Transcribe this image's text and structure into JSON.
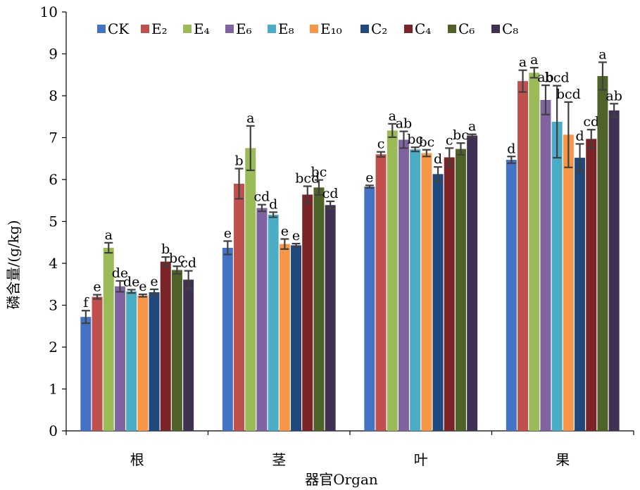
{
  "chart_data": {
    "type": "bar",
    "title": "",
    "xlabel": "器官Organ",
    "ylabel": "磷含量/(g/kg)",
    "ylim": [
      0,
      10
    ],
    "yticks": [
      0,
      1,
      2,
      3,
      4,
      5,
      6,
      7,
      8,
      9,
      10
    ],
    "grid": false,
    "legend_position": "top",
    "categories": [
      "根",
      "茎",
      "叶",
      "果"
    ],
    "series": [
      {
        "name": "CK",
        "color": "#4472C4",
        "values": [
          2.72,
          4.37,
          5.83,
          6.47
        ],
        "errors": [
          0.15,
          0.16,
          0.03,
          0.08
        ],
        "labels": [
          "f",
          "e",
          "e",
          "d"
        ]
      },
      {
        "name": "E₂",
        "color": "#C0504D",
        "values": [
          3.2,
          5.9,
          6.6,
          8.35
        ],
        "errors": [
          0.05,
          0.36,
          0.06,
          0.26
        ],
        "labels": [
          "e",
          "b",
          "c",
          "a"
        ]
      },
      {
        "name": "E₄",
        "color": "#9BBB59",
        "values": [
          4.37,
          6.75,
          7.17,
          8.55
        ],
        "errors": [
          0.12,
          0.53,
          0.16,
          0.12
        ],
        "labels": [
          "a",
          "a",
          "a",
          "a"
        ]
      },
      {
        "name": "E₆",
        "color": "#8064A2",
        "values": [
          3.45,
          5.32,
          6.95,
          7.9
        ],
        "errors": [
          0.13,
          0.08,
          0.2,
          0.35
        ],
        "labels": [
          "de",
          "cd",
          "ab",
          "ab"
        ]
      },
      {
        "name": "E₈",
        "color": "#4BACC6",
        "values": [
          3.33,
          5.16,
          6.72,
          7.38
        ],
        "errors": [
          0.04,
          0.06,
          0.05,
          0.86
        ],
        "labels": [
          "de",
          "d",
          "bc",
          "bcd"
        ]
      },
      {
        "name": "E₁₀",
        "color": "#F79646",
        "values": [
          3.23,
          4.46,
          6.63,
          7.07
        ],
        "errors": [
          0.03,
          0.12,
          0.08,
          0.78
        ],
        "labels": [
          "e",
          "e",
          "bc",
          "bcd"
        ]
      },
      {
        "name": "C₂",
        "color": "#1F497D",
        "values": [
          3.31,
          4.43,
          6.13,
          6.52
        ],
        "errors": [
          0.07,
          0.04,
          0.17,
          0.33
        ],
        "labels": [
          "e",
          "e",
          "d",
          "d"
        ]
      },
      {
        "name": "C₄",
        "color": "#7B2427",
        "values": [
          4.04,
          5.64,
          6.53,
          6.97
        ],
        "errors": [
          0.11,
          0.2,
          0.22,
          0.22
        ],
        "labels": [
          "b",
          "bcd",
          "c",
          "cd"
        ]
      },
      {
        "name": "C₆",
        "color": "#4F6228",
        "values": [
          3.84,
          5.81,
          6.73,
          8.47
        ],
        "errors": [
          0.09,
          0.18,
          0.14,
          0.33
        ],
        "labels": [
          "bc",
          "bc",
          "bc",
          "a"
        ]
      },
      {
        "name": "C₈",
        "color": "#403152",
        "values": [
          3.61,
          5.39,
          7.05,
          7.65
        ],
        "errors": [
          0.21,
          0.09,
          0.03,
          0.16
        ],
        "labels": [
          "cd",
          "cd",
          "a",
          "ab"
        ]
      }
    ]
  }
}
